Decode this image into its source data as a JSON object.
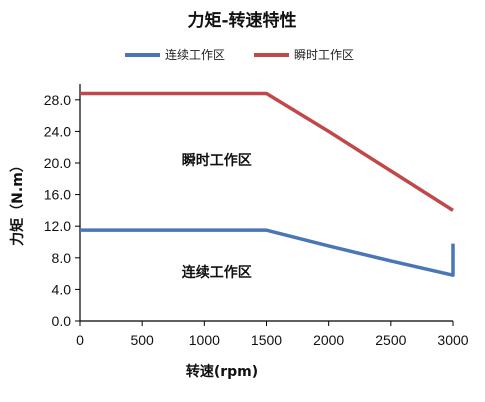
{
  "chart_data": {
    "type": "line",
    "title": "力矩-转速特性",
    "xlabel": "转速(rpm)",
    "ylabel": "力矩（N.m）",
    "xlim": [
      0,
      3000
    ],
    "ylim": [
      0,
      30
    ],
    "x_ticks": [
      "0",
      "500",
      "1000",
      "1500",
      "2000",
      "2500",
      "3000"
    ],
    "y_ticks": [
      "0.0",
      "4.0",
      "8.0",
      "12.0",
      "16.0",
      "20.0",
      "24.0",
      "28.0"
    ],
    "legend_position": "top",
    "grid": false,
    "series": [
      {
        "name": "连续工作区",
        "color": "#4a76b8",
        "x": [
          0,
          1500,
          2000,
          2500,
          3000,
          3000
        ],
        "y": [
          11.5,
          11.5,
          9.5,
          7.6,
          5.8,
          9.8
        ]
      },
      {
        "name": "瞬时工作区",
        "color": "#c0474a",
        "x": [
          0,
          1500,
          2000,
          2500,
          3000
        ],
        "y": [
          28.8,
          28.8,
          24.0,
          19.0,
          14.0
        ]
      }
    ],
    "annotations": [
      {
        "text": "瞬时工作区",
        "x": 1100,
        "y": 20.4
      },
      {
        "text": "连续工作区",
        "x": 1100,
        "y": 6.2
      }
    ]
  }
}
